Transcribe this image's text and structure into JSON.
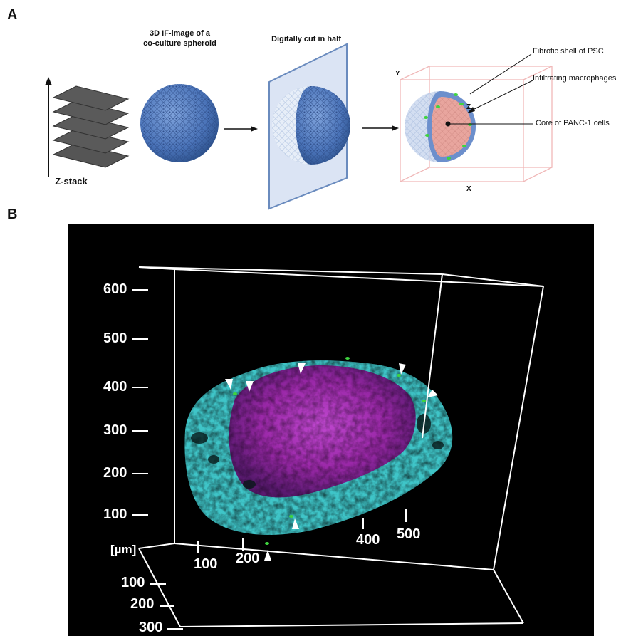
{
  "panel_a": {
    "letter": "A",
    "zstack_label": "Z-stack",
    "spheroid_label_line1": "3D IF-image of a",
    "spheroid_label_line2": "co-culture spheroid",
    "cut_label": "Digitally cut in half",
    "annotations": {
      "shell": "Fibrotic shell of PSC",
      "macrophages": "Infiltrating macrophages",
      "core": "Core of PANC-1 cells"
    },
    "axes": {
      "y": "Y",
      "z": "Z",
      "x": "X"
    }
  },
  "panel_b": {
    "letter": "B",
    "unit": "[µm]",
    "vertical_ticks": [
      "600",
      "500",
      "400",
      "300",
      "200",
      "100"
    ],
    "x_ticks": [
      "100",
      "200",
      "400",
      "500"
    ],
    "depth_ticks": [
      "100",
      "200",
      "300"
    ]
  },
  "colors": {
    "sphere_blue": "#4a73b8",
    "core_pink": "#e8a59e",
    "cyan": "#3fc5c8",
    "magenta": "#b030c0",
    "macrophage_green": "#3fd43f",
    "box_pink": "#f0b8b8"
  }
}
